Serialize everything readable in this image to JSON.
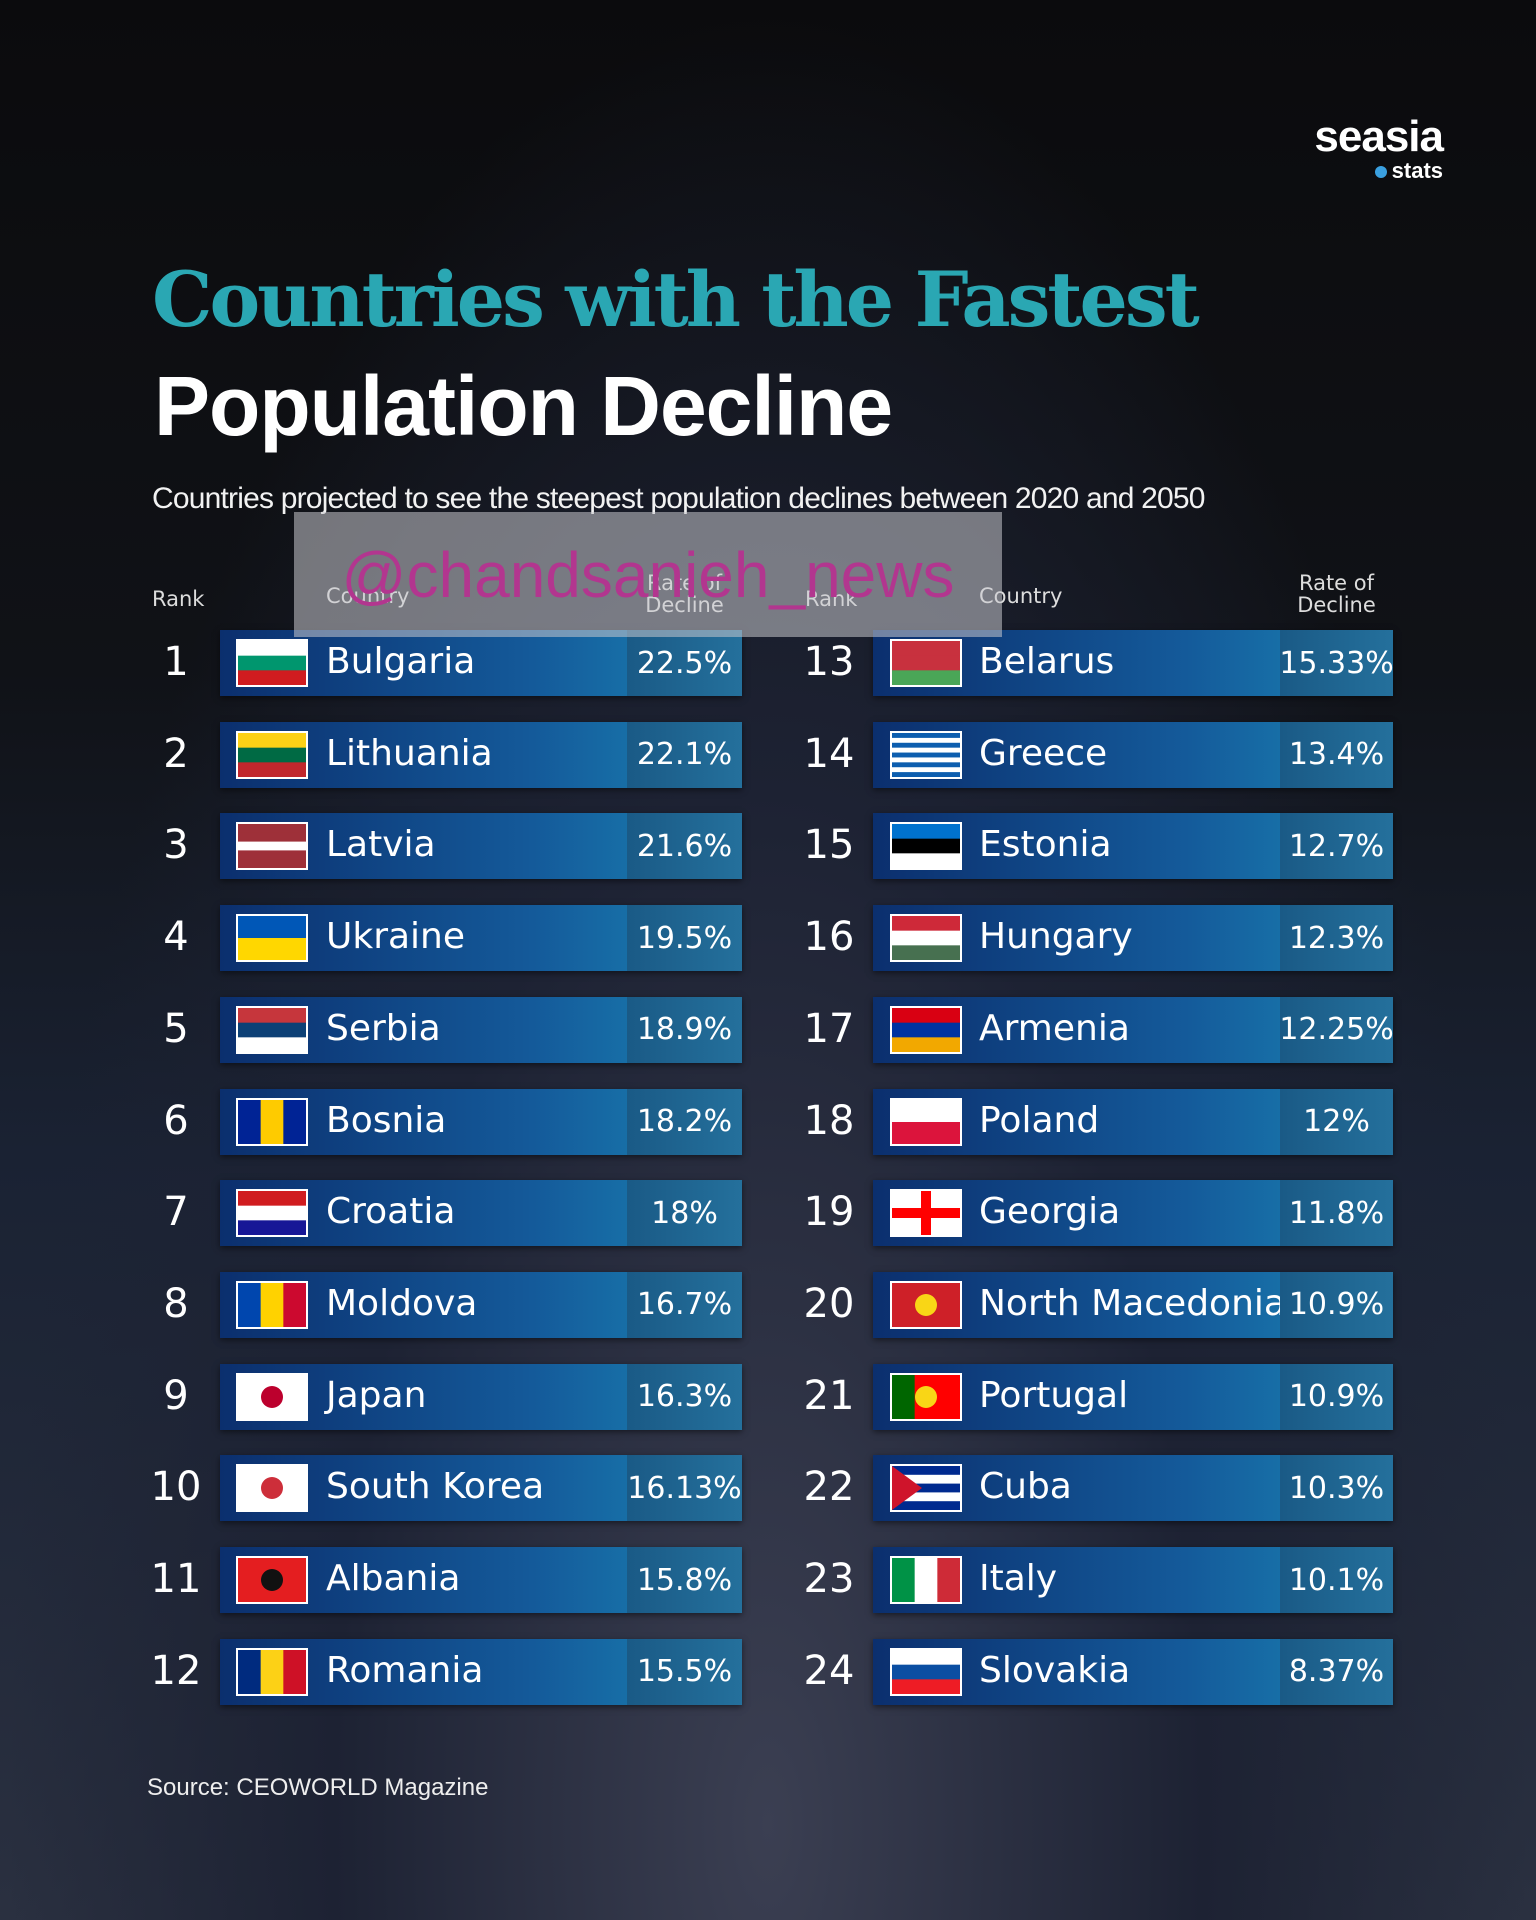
{
  "brand": {
    "name": "seasia",
    "sub": "stats"
  },
  "title": {
    "line1": "Countries with the Fastest",
    "line2": "Population Decline"
  },
  "subtitle": "Countries projected to see the steepest population declines between 2020 and 2050",
  "headers": {
    "rank": "Rank",
    "country": "Country",
    "rate": "Rate of Decline"
  },
  "table": {
    "rows": [
      [
        1,
        "Bulgaria",
        "22.5%"
      ],
      [
        2,
        "Lithuania",
        "22.1%"
      ],
      [
        3,
        "Latvia",
        "21.6%"
      ],
      [
        4,
        "Ukraine",
        "19.5%"
      ],
      [
        5,
        "Serbia",
        "18.9%"
      ],
      [
        6,
        "Bosnia",
        "18.2%"
      ],
      [
        7,
        "Croatia",
        "18%"
      ],
      [
        8,
        "Moldova",
        "16.7%"
      ],
      [
        9,
        "Japan",
        "16.3%"
      ],
      [
        10,
        "South Korea",
        "16.13%"
      ],
      [
        11,
        "Albania",
        "15.8%"
      ],
      [
        12,
        "Romania",
        "15.5%"
      ],
      [
        13,
        "Belarus",
        "15.33%"
      ],
      [
        14,
        "Greece",
        "13.4%"
      ],
      [
        15,
        "Estonia",
        "12.7%"
      ],
      [
        16,
        "Hungary",
        "12.3%"
      ],
      [
        17,
        "Armenia",
        "12.25%"
      ],
      [
        18,
        "Poland",
        "12%"
      ],
      [
        19,
        "Georgia",
        "11.8%"
      ],
      [
        20,
        "North Macedonia",
        "10.9%"
      ],
      [
        21,
        "Portugal",
        "10.9%"
      ],
      [
        22,
        "Cuba",
        "10.3%"
      ],
      [
        23,
        "Italy",
        "10.1%"
      ],
      [
        24,
        "Slovakia",
        "8.37%"
      ]
    ]
  },
  "source": "Source: CEOWORLD Magazine",
  "watermark": "@chandsanieh_news"
}
